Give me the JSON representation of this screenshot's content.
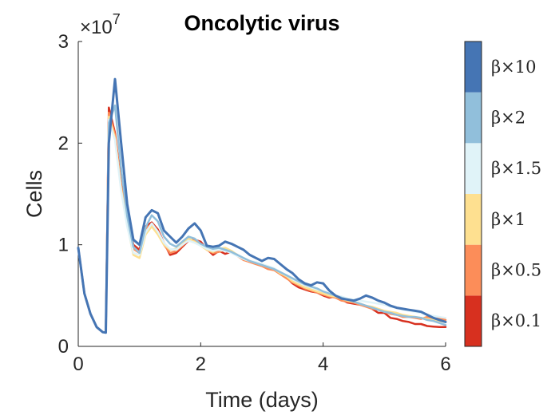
{
  "chart_data": {
    "type": "line",
    "title": "Oncolytic virus",
    "xlabel": "Time (days)",
    "ylabel": "Cells",
    "xlim": [
      0,
      6
    ],
    "ylim": [
      0,
      30000000
    ],
    "x_ticks": [
      "0",
      "2",
      "4",
      "6"
    ],
    "y_ticks": [
      "0",
      "1",
      "2",
      "3"
    ],
    "y_multiplier": "×10",
    "y_multiplier_exponent": "7",
    "grid": false,
    "legend": "colorbar-right",
    "colorbar_labels": [
      "β×0.1",
      "β×0.5",
      "β×1",
      "β×1.5",
      "β×2",
      "β×10"
    ],
    "series": [
      {
        "name": "β×0.1",
        "color": "#d7301f",
        "x": [
          0,
          0.1,
          0.2,
          0.3,
          0.4,
          0.45,
          0.5,
          0.6,
          0.7,
          0.8,
          0.9,
          1.0,
          1.1,
          1.2,
          1.3,
          1.4,
          1.5,
          1.6,
          1.7,
          1.8,
          1.9,
          2.0,
          2.1,
          2.2,
          2.3,
          2.4,
          2.5,
          2.6,
          2.7,
          2.8,
          2.9,
          3.0,
          3.1,
          3.2,
          3.3,
          3.4,
          3.5,
          3.6,
          3.7,
          3.8,
          3.9,
          4.0,
          4.1,
          4.2,
          4.3,
          4.4,
          4.5,
          4.6,
          4.7,
          4.8,
          4.9,
          5.0,
          5.1,
          5.2,
          5.3,
          5.4,
          5.5,
          5.6,
          5.7,
          5.8,
          5.9,
          6.0
        ],
        "values": [
          9700000,
          5200000,
          3200000,
          1900000,
          1400000,
          1350000,
          23500000,
          21000000,
          16000000,
          12500000,
          10000000,
          9500000,
          11800000,
          12200000,
          11500000,
          10200000,
          9000000,
          9200000,
          9800000,
          10400000,
          10500000,
          10300000,
          9600000,
          9000000,
          9400000,
          9100000,
          9300000,
          9000000,
          8500000,
          8400000,
          8200000,
          8000000,
          7700000,
          7600000,
          7200000,
          6800000,
          6200000,
          5800000,
          5600000,
          5400000,
          5300000,
          5000000,
          4800000,
          4900000,
          4600000,
          4300000,
          4200000,
          4100000,
          4000000,
          3700000,
          3300000,
          3300000,
          2800000,
          2700000,
          2500000,
          2400000,
          2200000,
          2200000,
          2000000,
          1950000,
          1900000,
          1900000
        ]
      },
      {
        "name": "β×0.5",
        "color": "#fc8d59",
        "x": [
          0,
          0.1,
          0.2,
          0.3,
          0.4,
          0.45,
          0.5,
          0.6,
          0.7,
          0.8,
          0.9,
          1.0,
          1.1,
          1.2,
          1.3,
          1.4,
          1.5,
          1.6,
          1.7,
          1.8,
          1.9,
          2.0,
          2.1,
          2.2,
          2.3,
          2.4,
          2.5,
          2.6,
          2.7,
          2.8,
          2.9,
          3.0,
          3.1,
          3.2,
          3.3,
          3.4,
          3.5,
          3.6,
          3.7,
          3.8,
          3.9,
          4.0,
          4.1,
          4.2,
          4.3,
          4.4,
          4.5,
          4.6,
          4.7,
          4.8,
          4.9,
          5.0,
          5.1,
          5.2,
          5.3,
          5.4,
          5.5,
          5.6,
          5.7,
          5.8,
          5.9,
          6.0
        ],
        "values": [
          9700000,
          5200000,
          3200000,
          1900000,
          1400000,
          1350000,
          23000000,
          20800000,
          15800000,
          12300000,
          9600000,
          9200000,
          11600000,
          12000000,
          11200000,
          10000000,
          9200000,
          9400000,
          9900000,
          10500000,
          10400000,
          10100000,
          9500000,
          9200000,
          9300000,
          9500000,
          9400000,
          8900000,
          8500000,
          8300000,
          8100000,
          7900000,
          7600000,
          7500000,
          7100000,
          6700000,
          6300000,
          6000000,
          5700000,
          5500000,
          5300000,
          5100000,
          4900000,
          4800000,
          4500000,
          4400000,
          4300000,
          4100000,
          3900000,
          3700000,
          3600000,
          3400000,
          3200000,
          3100000,
          2900000,
          2900000,
          2800000,
          2700000,
          2900000,
          2700000,
          2800000,
          2600000
        ]
      },
      {
        "name": "β×1",
        "color": "#fee090",
        "x": [
          0,
          0.1,
          0.2,
          0.3,
          0.4,
          0.45,
          0.5,
          0.6,
          0.7,
          0.8,
          0.9,
          1.0,
          1.1,
          1.2,
          1.3,
          1.4,
          1.5,
          1.6,
          1.7,
          1.8,
          1.9,
          2.0,
          2.1,
          2.2,
          2.3,
          2.4,
          2.5,
          2.6,
          2.7,
          2.8,
          2.9,
          3.0,
          3.1,
          3.2,
          3.3,
          3.4,
          3.5,
          3.6,
          3.7,
          3.8,
          3.9,
          4.0,
          4.1,
          4.2,
          4.3,
          4.4,
          4.5,
          4.6,
          4.7,
          4.8,
          4.9,
          5.0,
          5.1,
          5.2,
          5.3,
          5.4,
          5.5,
          5.6,
          5.7,
          5.8,
          5.9,
          6.0
        ],
        "values": [
          9700000,
          5200000,
          3200000,
          1900000,
          1400000,
          1350000,
          22600000,
          20500000,
          15500000,
          12000000,
          9000000,
          8700000,
          11000000,
          11800000,
          11000000,
          10000000,
          9500000,
          9600000,
          10100000,
          10600000,
          10300000,
          9900000,
          9500000,
          9300000,
          9600000,
          9700000,
          9400000,
          9000000,
          8600000,
          8400000,
          8200000,
          8000000,
          7800000,
          7600000,
          7200000,
          6900000,
          6400000,
          6100000,
          5800000,
          5600000,
          5400000,
          5200000,
          5000000,
          4900000,
          4700000,
          4500000,
          4400000,
          4200000,
          4000000,
          3900000,
          3700000,
          3500000,
          3400000,
          3300000,
          3100000,
          3000000,
          2900000,
          2800000,
          2700000,
          2600000,
          2500000,
          2400000
        ]
      },
      {
        "name": "β×1.5",
        "color": "#e0f3f8",
        "x": [
          0,
          0.1,
          0.2,
          0.3,
          0.4,
          0.45,
          0.5,
          0.6,
          0.7,
          0.8,
          0.9,
          1.0,
          1.1,
          1.2,
          1.3,
          1.4,
          1.5,
          1.6,
          1.7,
          1.8,
          1.9,
          2.0,
          2.1,
          2.2,
          2.3,
          2.4,
          2.5,
          2.6,
          2.7,
          2.8,
          2.9,
          3.0,
          3.1,
          3.2,
          3.3,
          3.4,
          3.5,
          3.6,
          3.7,
          3.8,
          3.9,
          4.0,
          4.1,
          4.2,
          4.3,
          4.4,
          4.5,
          4.6,
          4.7,
          4.8,
          4.9,
          5.0,
          5.1,
          5.2,
          5.3,
          5.4,
          5.5,
          5.6,
          5.7,
          5.8,
          5.9,
          6.0
        ],
        "values": [
          9700000,
          5200000,
          3200000,
          1900000,
          1400000,
          1350000,
          22300000,
          20300000,
          15300000,
          11800000,
          9200000,
          9000000,
          11200000,
          12100000,
          11300000,
          10200000,
          9600000,
          9500000,
          10000000,
          10400000,
          10200000,
          9900000,
          9600000,
          9400000,
          9500000,
          9400000,
          9200000,
          8900000,
          8600000,
          8400000,
          8300000,
          8100000,
          7900000,
          7700000,
          7300000,
          7000000,
          6600000,
          6300000,
          6000000,
          5800000,
          5600000,
          5400000,
          5200000,
          5000000,
          4900000,
          4700000,
          4600000,
          4500000,
          4400000,
          4300000,
          4200000,
          4100000,
          3900000,
          3800000,
          3600000,
          3500000,
          3400000,
          3300000,
          3100000,
          3000000,
          2900000,
          2800000
        ]
      },
      {
        "name": "β×2",
        "color": "#91bfdb",
        "x": [
          0,
          0.1,
          0.2,
          0.3,
          0.4,
          0.45,
          0.5,
          0.6,
          0.7,
          0.8,
          0.9,
          1.0,
          1.1,
          1.2,
          1.3,
          1.4,
          1.5,
          1.6,
          1.7,
          1.8,
          1.9,
          2.0,
          2.1,
          2.2,
          2.3,
          2.4,
          2.5,
          2.6,
          2.7,
          2.8,
          2.9,
          3.0,
          3.1,
          3.2,
          3.3,
          3.4,
          3.5,
          3.6,
          3.7,
          3.8,
          3.9,
          4.0,
          4.1,
          4.2,
          4.3,
          4.4,
          4.5,
          4.6,
          4.7,
          4.8,
          4.9,
          5.0,
          5.1,
          5.2,
          5.3,
          5.4,
          5.5,
          5.6,
          5.7,
          5.8,
          5.9,
          6.0
        ],
        "values": [
          9700000,
          5200000,
          3200000,
          1900000,
          1400000,
          1350000,
          22000000,
          23700000,
          17500000,
          12800000,
          9800000,
          9200000,
          11700000,
          12900000,
          12300000,
          10800000,
          10100000,
          9800000,
          10300000,
          10800000,
          10600000,
          10100000,
          9800000,
          9600000,
          9700000,
          9500000,
          9300000,
          9000000,
          8700000,
          8400000,
          8200000,
          8000000,
          7800000,
          7600000,
          7300000,
          7000000,
          6700000,
          6400000,
          6100000,
          5900000,
          5700000,
          5400000,
          5200000,
          5000000,
          4800000,
          4600000,
          4400000,
          4200000,
          4000000,
          3800000,
          3600000,
          3400000,
          3300000,
          3100000,
          3000000,
          2900000,
          2900000,
          2800000,
          2600000,
          2500000,
          2300000,
          2100000
        ]
      },
      {
        "name": "β×10",
        "color": "#4575b4",
        "x": [
          0,
          0.1,
          0.2,
          0.3,
          0.4,
          0.45,
          0.5,
          0.6,
          0.7,
          0.8,
          0.9,
          1.0,
          1.1,
          1.2,
          1.3,
          1.4,
          1.5,
          1.6,
          1.7,
          1.8,
          1.9,
          2.0,
          2.1,
          2.2,
          2.3,
          2.4,
          2.5,
          2.6,
          2.7,
          2.8,
          2.9,
          3.0,
          3.1,
          3.2,
          3.3,
          3.4,
          3.5,
          3.6,
          3.7,
          3.8,
          3.9,
          4.0,
          4.1,
          4.2,
          4.3,
          4.4,
          4.5,
          4.6,
          4.7,
          4.8,
          4.9,
          5.0,
          5.1,
          5.2,
          5.3,
          5.4,
          5.5,
          5.6,
          5.7,
          5.8,
          5.9,
          6.0
        ],
        "values": [
          9700000,
          5200000,
          3200000,
          1900000,
          1400000,
          1350000,
          20000000,
          26300000,
          20000000,
          14000000,
          10500000,
          10000000,
          12700000,
          13400000,
          13100000,
          11400000,
          10800000,
          10200000,
          10800000,
          11600000,
          12100000,
          11400000,
          9900000,
          9800000,
          9900000,
          10300000,
          10100000,
          9800000,
          9500000,
          9000000,
          8700000,
          8400000,
          8700000,
          8600000,
          8100000,
          7600000,
          7200000,
          6600000,
          6200000,
          6000000,
          6300000,
          6200000,
          5500000,
          5000000,
          4700000,
          4600000,
          4500000,
          4700000,
          5000000,
          4800000,
          4500000,
          4300000,
          4000000,
          3800000,
          3700000,
          3600000,
          3500000,
          3400000,
          3100000,
          2800000,
          2600000,
          2400000
        ]
      }
    ]
  }
}
